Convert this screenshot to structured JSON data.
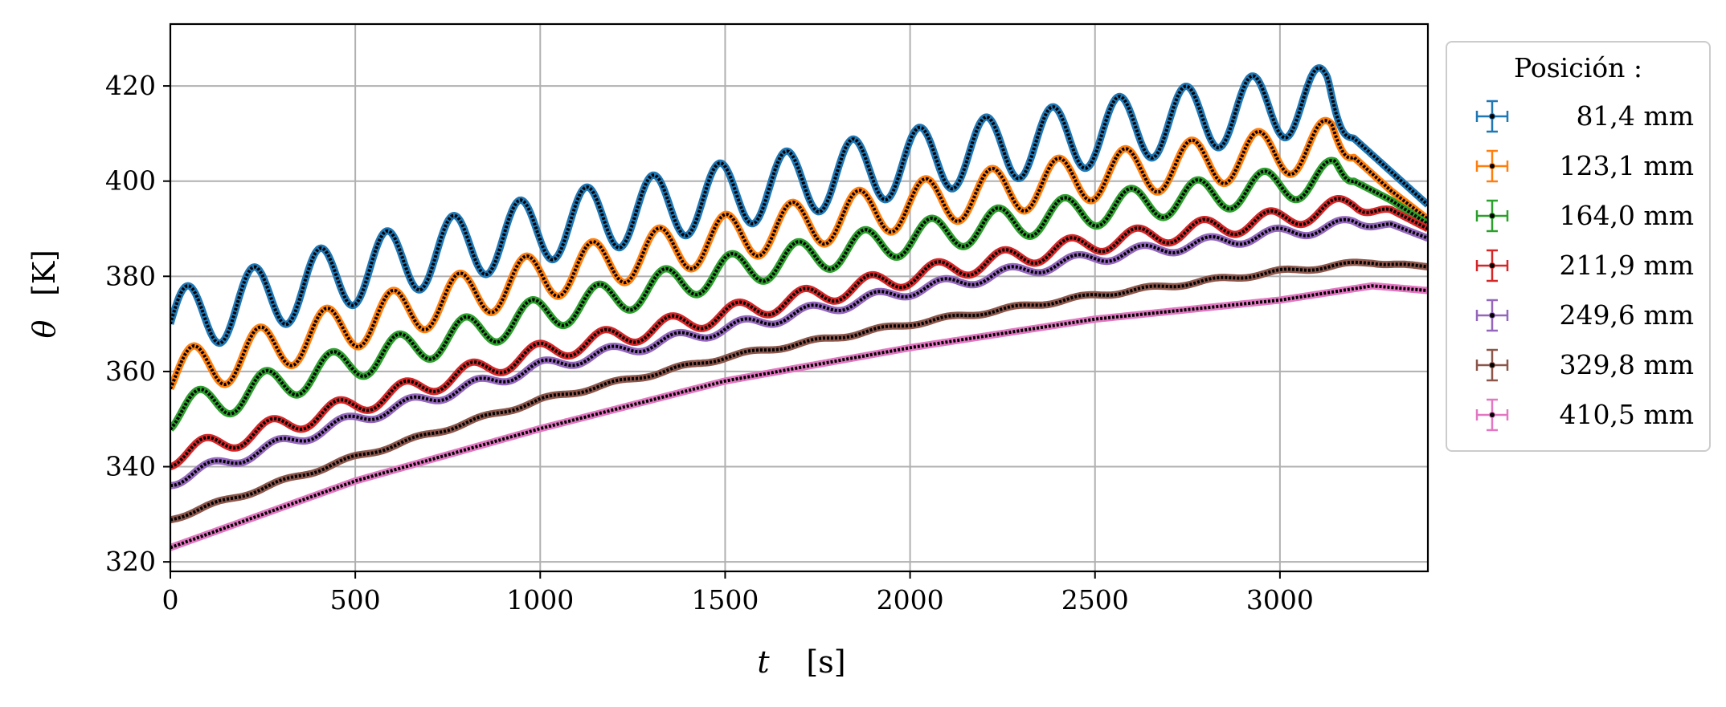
{
  "chart_data": {
    "type": "line",
    "title": "",
    "xlabel_var": "t",
    "xlabel_unit": "[s]",
    "ylabel_var": "θ",
    "ylabel_unit": "[K]",
    "xlim": [
      0,
      3400
    ],
    "ylim": [
      318,
      433
    ],
    "xticks": [
      0,
      500,
      1000,
      1500,
      2000,
      2500,
      3000
    ],
    "yticks": [
      320,
      340,
      360,
      380,
      400,
      420
    ],
    "xtick_labels": [
      "0",
      "500",
      "1000",
      "1500",
      "2000",
      "2500",
      "3000"
    ],
    "ytick_labels": [
      "320",
      "340",
      "360",
      "380",
      "400",
      "420"
    ],
    "grid": true,
    "legend_title": "Posición :",
    "legend_position": "outside right, top",
    "error_bars": true,
    "period_s": 180,
    "series": [
      {
        "name": "81,4 mm",
        "color": "#1f77b4",
        "x": [
          0,
          500,
          1000,
          1500,
          2000,
          2500,
          3000,
          3130,
          3200,
          3300,
          3400
        ],
        "y": [
          370,
          381,
          390,
          397,
          404,
          410,
          416,
          417,
          409,
          402,
          395
        ],
        "amplitude": [
          7,
          7,
          7,
          7,
          7,
          7,
          7,
          7,
          0,
          0,
          0
        ]
      },
      {
        "name": "123,1 mm",
        "color": "#ff7f0e",
        "x": [
          0,
          500,
          1000,
          1500,
          2000,
          2500,
          3000,
          3140,
          3200,
          3300,
          3400
        ],
        "y": [
          359,
          370,
          380,
          388,
          395,
          401,
          406,
          408,
          405,
          398,
          392
        ],
        "amplitude": [
          5,
          5,
          5,
          5,
          5,
          5,
          5,
          5,
          0,
          0,
          0
        ]
      },
      {
        "name": "164,0 mm",
        "color": "#2ca02c",
        "x": [
          0,
          500,
          1000,
          1500,
          2000,
          2500,
          3000,
          3150,
          3200,
          3300,
          3400
        ],
        "y": [
          351,
          362,
          372,
          381,
          388,
          394,
          399,
          401,
          400,
          396,
          391
        ],
        "amplitude": [
          3.5,
          3.5,
          3.5,
          3.5,
          3.5,
          3.5,
          3.5,
          3.5,
          0,
          0,
          0
        ]
      },
      {
        "name": "211,9 mm",
        "color": "#d62728",
        "x": [
          0,
          500,
          1000,
          1500,
          2000,
          2500,
          3000,
          3200,
          3300,
          3400
        ],
        "y": [
          342,
          353,
          364,
          372,
          380,
          387,
          392,
          395,
          394,
          390
        ],
        "amplitude": [
          2,
          2,
          2,
          2,
          2,
          2,
          2,
          2,
          0,
          0
        ]
      },
      {
        "name": "249,6 mm",
        "color": "#9467bd",
        "x": [
          0,
          500,
          1000,
          1500,
          2000,
          2500,
          3000,
          3200,
          3300,
          3400
        ],
        "y": [
          337,
          350,
          361,
          369,
          377,
          384,
          389,
          391,
          391,
          388
        ],
        "amplitude": [
          1.2,
          1.2,
          1.2,
          1.2,
          1.2,
          1.2,
          1.2,
          1.2,
          0,
          0
        ]
      },
      {
        "name": "329,8 mm",
        "color": "#8c564b",
        "x": [
          0,
          500,
          1000,
          1500,
          2000,
          2500,
          3000,
          3250,
          3400
        ],
        "y": [
          329,
          342,
          354,
          363,
          370,
          376,
          381,
          383,
          382
        ],
        "amplitude": [
          0.4,
          0.4,
          0.4,
          0.4,
          0.4,
          0.4,
          0.4,
          0.4,
          0
        ]
      },
      {
        "name": "410,5 mm",
        "color": "#e377c2",
        "x": [
          0,
          500,
          1000,
          1500,
          2000,
          2500,
          3000,
          3250,
          3400
        ],
        "y": [
          323,
          337,
          348,
          358,
          365,
          371,
          375,
          378,
          377
        ],
        "amplitude": [
          0,
          0,
          0,
          0,
          0,
          0,
          0,
          0,
          0
        ]
      }
    ]
  }
}
